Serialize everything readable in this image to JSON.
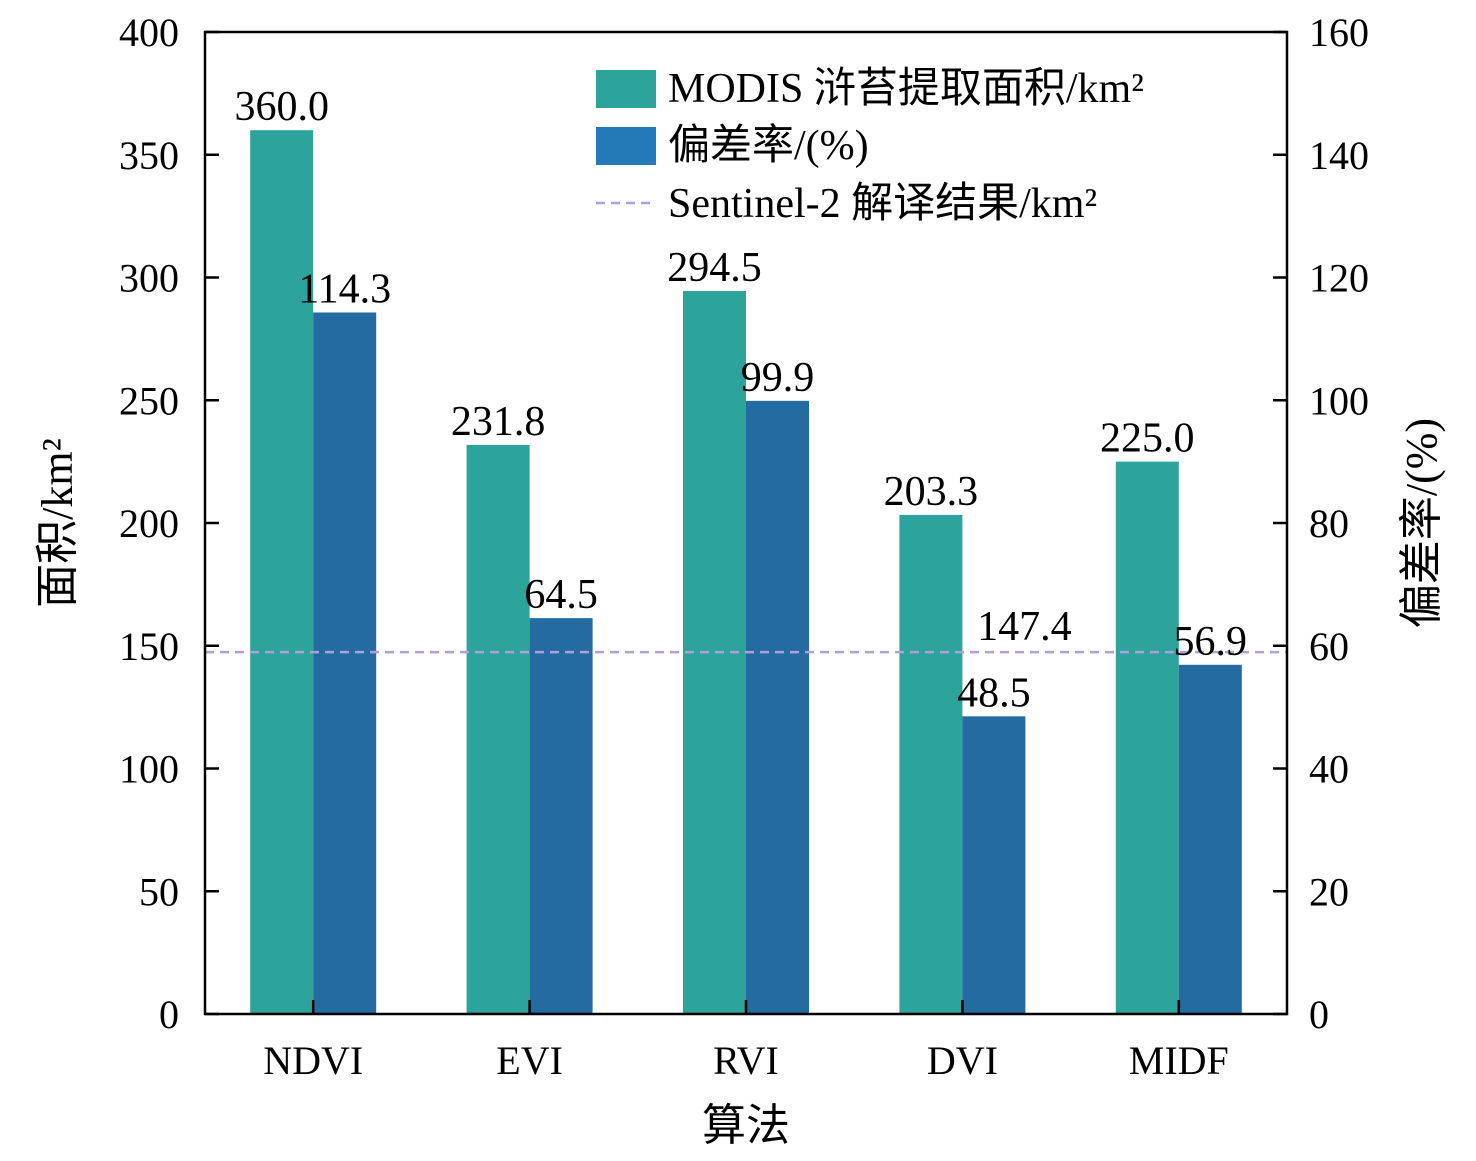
{
  "chart_data": {
    "type": "bar",
    "xlabel": "算法",
    "ylabel": "面积/km²",
    "y2label": "偏差率/(%)",
    "categories": [
      "NDVI",
      "EVI",
      "RVI",
      "DVI",
      "MIDF"
    ],
    "ylim": [
      0,
      400
    ],
    "y2lim": [
      0,
      160
    ],
    "yticks": [
      "0",
      "50",
      "100",
      "150",
      "200",
      "250",
      "300",
      "350",
      "400"
    ],
    "y2ticks": [
      "0",
      "20",
      "40",
      "60",
      "80",
      "100",
      "120",
      "140",
      "160"
    ],
    "series": [
      {
        "name": "MODIS 浒苔提取面积/km²",
        "axis": "left",
        "color": "#2ca39b",
        "values": [
          360.0,
          231.8,
          294.5,
          203.3,
          225.0
        ],
        "labels": [
          "360.0",
          "231.8",
          "294.5",
          "203.3",
          "225.0"
        ]
      },
      {
        "name": "偏差率/(%)",
        "axis": "right",
        "color": "#246ba1",
        "legend_color": "#2479b8",
        "values": [
          114.3,
          64.5,
          99.9,
          48.5,
          56.9
        ],
        "labels": [
          "114.3",
          "64.5",
          "99.9",
          "48.5",
          "56.9"
        ]
      }
    ],
    "reference_line": {
      "name": "Sentinel-2 解译结果/km²",
      "axis": "left",
      "value": 147.4,
      "label": "147.4",
      "color": "#b39ddb",
      "style": "dashed"
    },
    "legend_position": "top-right",
    "grid": false
  }
}
